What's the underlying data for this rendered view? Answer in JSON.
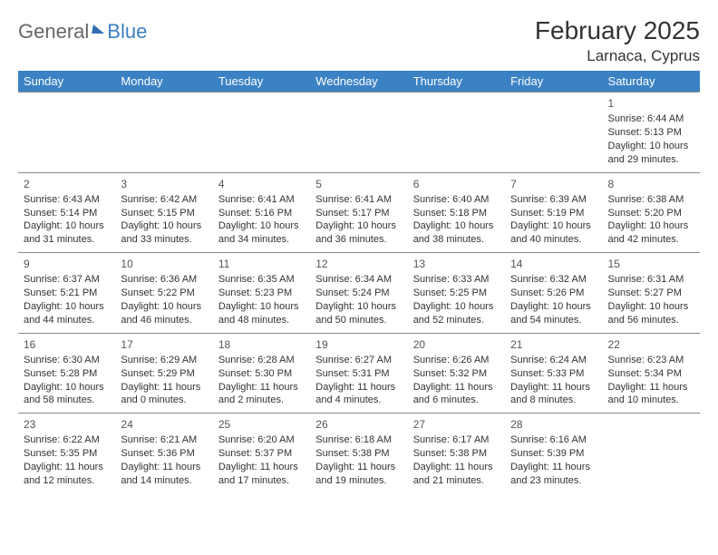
{
  "brand": {
    "part1": "General",
    "part2": "Blue"
  },
  "title": "February 2025",
  "location": "Larnaca, Cyprus",
  "header_bg": "#3b82c4",
  "header_fg": "#ffffff",
  "border_color": "#888888",
  "weekday_labels": [
    "Sunday",
    "Monday",
    "Tuesday",
    "Wednesday",
    "Thursday",
    "Friday",
    "Saturday"
  ],
  "weeks": [
    [
      null,
      null,
      null,
      null,
      null,
      null,
      {
        "day": "1",
        "sunrise": "Sunrise: 6:44 AM",
        "sunset": "Sunset: 5:13 PM",
        "daylight1": "Daylight: 10 hours",
        "daylight2": "and 29 minutes."
      }
    ],
    [
      {
        "day": "2",
        "sunrise": "Sunrise: 6:43 AM",
        "sunset": "Sunset: 5:14 PM",
        "daylight1": "Daylight: 10 hours",
        "daylight2": "and 31 minutes."
      },
      {
        "day": "3",
        "sunrise": "Sunrise: 6:42 AM",
        "sunset": "Sunset: 5:15 PM",
        "daylight1": "Daylight: 10 hours",
        "daylight2": "and 33 minutes."
      },
      {
        "day": "4",
        "sunrise": "Sunrise: 6:41 AM",
        "sunset": "Sunset: 5:16 PM",
        "daylight1": "Daylight: 10 hours",
        "daylight2": "and 34 minutes."
      },
      {
        "day": "5",
        "sunrise": "Sunrise: 6:41 AM",
        "sunset": "Sunset: 5:17 PM",
        "daylight1": "Daylight: 10 hours",
        "daylight2": "and 36 minutes."
      },
      {
        "day": "6",
        "sunrise": "Sunrise: 6:40 AM",
        "sunset": "Sunset: 5:18 PM",
        "daylight1": "Daylight: 10 hours",
        "daylight2": "and 38 minutes."
      },
      {
        "day": "7",
        "sunrise": "Sunrise: 6:39 AM",
        "sunset": "Sunset: 5:19 PM",
        "daylight1": "Daylight: 10 hours",
        "daylight2": "and 40 minutes."
      },
      {
        "day": "8",
        "sunrise": "Sunrise: 6:38 AM",
        "sunset": "Sunset: 5:20 PM",
        "daylight1": "Daylight: 10 hours",
        "daylight2": "and 42 minutes."
      }
    ],
    [
      {
        "day": "9",
        "sunrise": "Sunrise: 6:37 AM",
        "sunset": "Sunset: 5:21 PM",
        "daylight1": "Daylight: 10 hours",
        "daylight2": "and 44 minutes."
      },
      {
        "day": "10",
        "sunrise": "Sunrise: 6:36 AM",
        "sunset": "Sunset: 5:22 PM",
        "daylight1": "Daylight: 10 hours",
        "daylight2": "and 46 minutes."
      },
      {
        "day": "11",
        "sunrise": "Sunrise: 6:35 AM",
        "sunset": "Sunset: 5:23 PM",
        "daylight1": "Daylight: 10 hours",
        "daylight2": "and 48 minutes."
      },
      {
        "day": "12",
        "sunrise": "Sunrise: 6:34 AM",
        "sunset": "Sunset: 5:24 PM",
        "daylight1": "Daylight: 10 hours",
        "daylight2": "and 50 minutes."
      },
      {
        "day": "13",
        "sunrise": "Sunrise: 6:33 AM",
        "sunset": "Sunset: 5:25 PM",
        "daylight1": "Daylight: 10 hours",
        "daylight2": "and 52 minutes."
      },
      {
        "day": "14",
        "sunrise": "Sunrise: 6:32 AM",
        "sunset": "Sunset: 5:26 PM",
        "daylight1": "Daylight: 10 hours",
        "daylight2": "and 54 minutes."
      },
      {
        "day": "15",
        "sunrise": "Sunrise: 6:31 AM",
        "sunset": "Sunset: 5:27 PM",
        "daylight1": "Daylight: 10 hours",
        "daylight2": "and 56 minutes."
      }
    ],
    [
      {
        "day": "16",
        "sunrise": "Sunrise: 6:30 AM",
        "sunset": "Sunset: 5:28 PM",
        "daylight1": "Daylight: 10 hours",
        "daylight2": "and 58 minutes."
      },
      {
        "day": "17",
        "sunrise": "Sunrise: 6:29 AM",
        "sunset": "Sunset: 5:29 PM",
        "daylight1": "Daylight: 11 hours",
        "daylight2": "and 0 minutes."
      },
      {
        "day": "18",
        "sunrise": "Sunrise: 6:28 AM",
        "sunset": "Sunset: 5:30 PM",
        "daylight1": "Daylight: 11 hours",
        "daylight2": "and 2 minutes."
      },
      {
        "day": "19",
        "sunrise": "Sunrise: 6:27 AM",
        "sunset": "Sunset: 5:31 PM",
        "daylight1": "Daylight: 11 hours",
        "daylight2": "and 4 minutes."
      },
      {
        "day": "20",
        "sunrise": "Sunrise: 6:26 AM",
        "sunset": "Sunset: 5:32 PM",
        "daylight1": "Daylight: 11 hours",
        "daylight2": "and 6 minutes."
      },
      {
        "day": "21",
        "sunrise": "Sunrise: 6:24 AM",
        "sunset": "Sunset: 5:33 PM",
        "daylight1": "Daylight: 11 hours",
        "daylight2": "and 8 minutes."
      },
      {
        "day": "22",
        "sunrise": "Sunrise: 6:23 AM",
        "sunset": "Sunset: 5:34 PM",
        "daylight1": "Daylight: 11 hours",
        "daylight2": "and 10 minutes."
      }
    ],
    [
      {
        "day": "23",
        "sunrise": "Sunrise: 6:22 AM",
        "sunset": "Sunset: 5:35 PM",
        "daylight1": "Daylight: 11 hours",
        "daylight2": "and 12 minutes."
      },
      {
        "day": "24",
        "sunrise": "Sunrise: 6:21 AM",
        "sunset": "Sunset: 5:36 PM",
        "daylight1": "Daylight: 11 hours",
        "daylight2": "and 14 minutes."
      },
      {
        "day": "25",
        "sunrise": "Sunrise: 6:20 AM",
        "sunset": "Sunset: 5:37 PM",
        "daylight1": "Daylight: 11 hours",
        "daylight2": "and 17 minutes."
      },
      {
        "day": "26",
        "sunrise": "Sunrise: 6:18 AM",
        "sunset": "Sunset: 5:38 PM",
        "daylight1": "Daylight: 11 hours",
        "daylight2": "and 19 minutes."
      },
      {
        "day": "27",
        "sunrise": "Sunrise: 6:17 AM",
        "sunset": "Sunset: 5:38 PM",
        "daylight1": "Daylight: 11 hours",
        "daylight2": "and 21 minutes."
      },
      {
        "day": "28",
        "sunrise": "Sunrise: 6:16 AM",
        "sunset": "Sunset: 5:39 PM",
        "daylight1": "Daylight: 11 hours",
        "daylight2": "and 23 minutes."
      },
      null
    ]
  ]
}
